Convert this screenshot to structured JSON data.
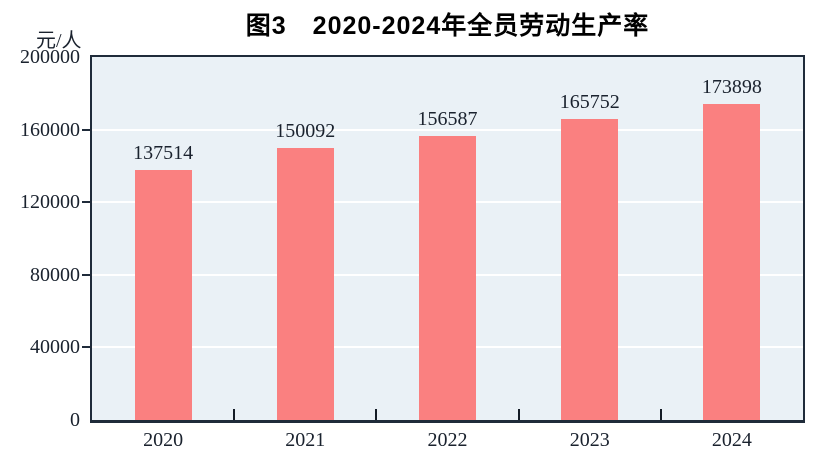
{
  "chart_data": {
    "type": "bar",
    "title": "图3　2020-2024年全员劳动生产率",
    "unit_label": "元/人",
    "categories": [
      "2020",
      "2021",
      "2022",
      "2023",
      "2024"
    ],
    "values": [
      137514,
      150092,
      156587,
      165752,
      173898
    ],
    "data_labels": [
      "137514",
      "150092",
      "156587",
      "165752",
      "173898"
    ],
    "ylim": [
      0,
      200000
    ],
    "yticks": [
      0,
      40000,
      80000,
      120000,
      160000,
      200000
    ],
    "ytick_labels": [
      "0",
      "40000",
      "80000",
      "120000",
      "160000",
      "200000"
    ],
    "grid": true,
    "legend": "none",
    "bar_color": "#fa8080",
    "plot_bg_color": "#eaf1f6",
    "gridline_color": "#ffffff",
    "border_color": "#1f2b3a",
    "text_color": "#1a222e"
  }
}
